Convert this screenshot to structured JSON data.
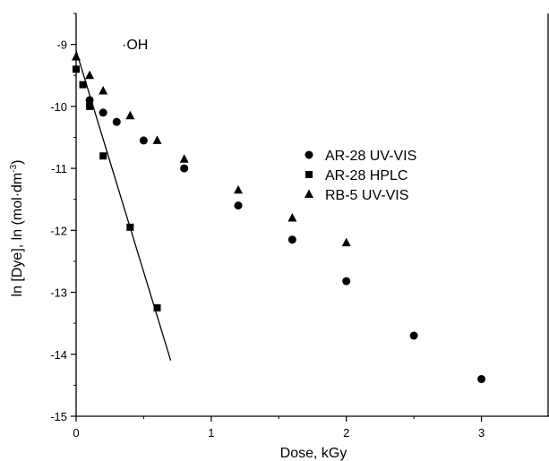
{
  "chart_data": {
    "type": "scatter",
    "title": "",
    "annotation": "·OH",
    "xlabel": "Dose, kGy",
    "ylabel": "ln [Dye], ln (mol·dm",
    "ylabel_sup": "-3",
    "ylabel_tail": ")",
    "xlim": [
      0,
      3.5
    ],
    "ylim": [
      -15,
      -8.5
    ],
    "xticks": [
      0,
      1,
      2,
      3
    ],
    "xtick_labels": [
      "0",
      "1",
      "2",
      "3"
    ],
    "yticks": [
      -9,
      -10,
      -11,
      -12,
      -13,
      -14,
      -15
    ],
    "ytick_labels": [
      "-9",
      "-10",
      "-11",
      "-12",
      "-13",
      "-14",
      "-15"
    ],
    "grid": false,
    "legend_position": "right-middle",
    "series": [
      {
        "name": "AR-28 UV-VIS",
        "marker": "circle",
        "x": [
          0.1,
          0.2,
          0.3,
          0.5,
          0.8,
          1.2,
          1.6,
          2.0,
          2.5,
          3.0
        ],
        "y": [
          -9.9,
          -10.1,
          -10.25,
          -10.55,
          -11.0,
          -11.6,
          -12.15,
          -12.82,
          -13.7,
          -14.4
        ]
      },
      {
        "name": "AR-28 HPLC",
        "marker": "square",
        "x": [
          0,
          0.05,
          0.1,
          0.2,
          0.4,
          0.6
        ],
        "y": [
          -9.4,
          -9.65,
          -10.0,
          -10.8,
          -11.95,
          -13.25
        ]
      },
      {
        "name": "RB-5 UV-VIS",
        "marker": "triangle",
        "x": [
          0,
          0.1,
          0.2,
          0.4,
          0.6,
          0.8,
          1.2,
          1.6,
          2.0
        ],
        "y": [
          -9.2,
          -9.5,
          -9.75,
          -10.15,
          -10.55,
          -10.85,
          -11.35,
          -11.8,
          -12.2
        ]
      }
    ],
    "fit_line": {
      "x": [
        0,
        0.7
      ],
      "y": [
        -9.1,
        -14.1
      ]
    }
  }
}
